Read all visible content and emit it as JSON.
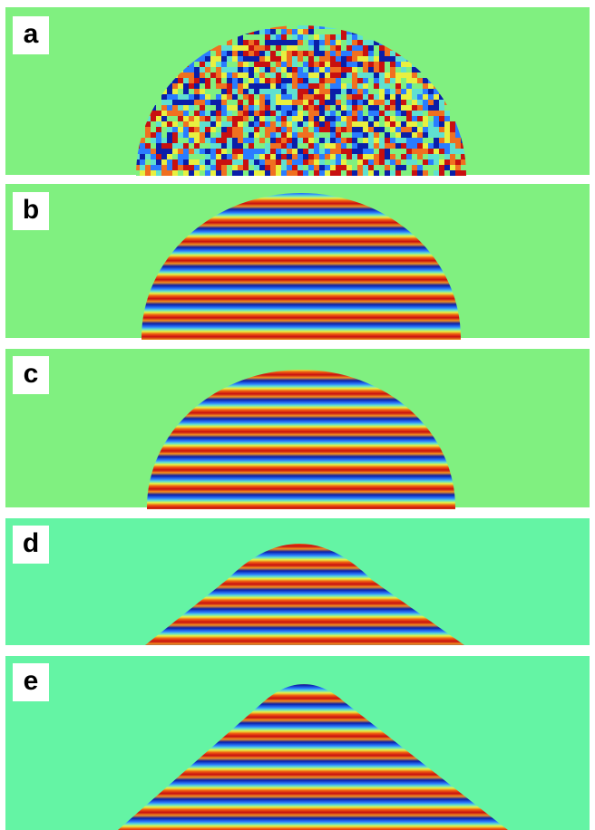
{
  "panels": [
    {
      "label": "a"
    },
    {
      "label": "b"
    },
    {
      "label": "c"
    },
    {
      "label": "d"
    },
    {
      "label": "e"
    }
  ]
}
